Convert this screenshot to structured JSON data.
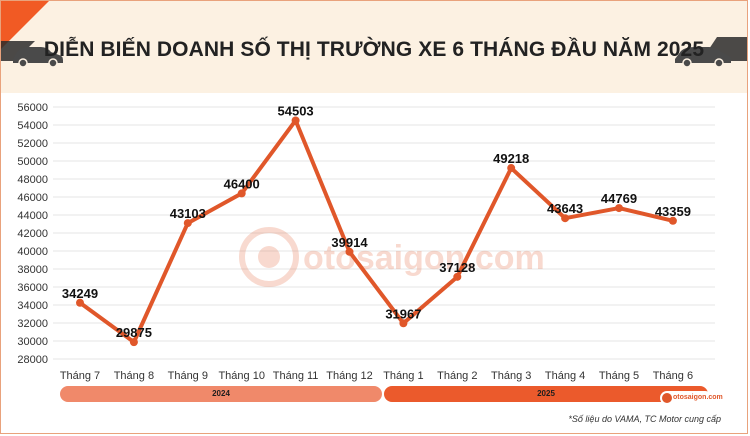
{
  "title": "DIỄN BIẾN DOANH SỐ THỊ TRƯỜNG XE 6 THÁNG ĐẦU NĂM 2025",
  "footnote": "*Số liệu do VAMA, TC Motor cung cấp",
  "watermark": "otosaigon.com",
  "logo_text": "otosaigon.com",
  "years": [
    "2024",
    "2025"
  ],
  "colors": {
    "line": "#e0572a",
    "band": "#fcf1e2",
    "triangle": "#f15a24",
    "car": "#4a4a4a",
    "year_2024": "#f0896a",
    "year_2025": "#eb5a2c",
    "grid": "#e6e6e6"
  },
  "icons": [
    "car-icon-left",
    "car-icon-right",
    "otosaigon-logo-icon"
  ],
  "chart_data": {
    "type": "line",
    "categories": [
      "Tháng 7",
      "Tháng 8",
      "Tháng 9",
      "Tháng 10",
      "Tháng 11",
      "Tháng 12",
      "Tháng 1",
      "Tháng 2",
      "Tháng 3",
      "Tháng 4",
      "Tháng 5",
      "Tháng 6"
    ],
    "values": [
      34249,
      29875,
      43103,
      46400,
      54503,
      39914,
      31967,
      37128,
      49218,
      43643,
      44769,
      43359
    ],
    "yticks": [
      28000,
      30000,
      32000,
      34000,
      36000,
      38000,
      40000,
      42000,
      44000,
      46000,
      48000,
      50000,
      52000,
      54000,
      56000
    ],
    "ylim": [
      28000,
      56000
    ],
    "grid": true,
    "legend": "none",
    "data_labels": true
  }
}
